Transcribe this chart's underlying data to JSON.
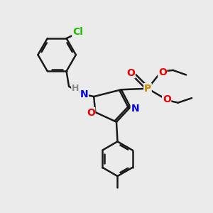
{
  "background_color": "#ebebeb",
  "atom_colors": {
    "C": "#1a1a1a",
    "H": "#888888",
    "N": "#0000ee",
    "O": "#ee0000",
    "P": "#cc8800",
    "Cl": "#22bb00"
  },
  "bond_color": "#1a1a1a",
  "bond_width": 1.8,
  "font_size_atom": 10,
  "font_size_small": 9
}
